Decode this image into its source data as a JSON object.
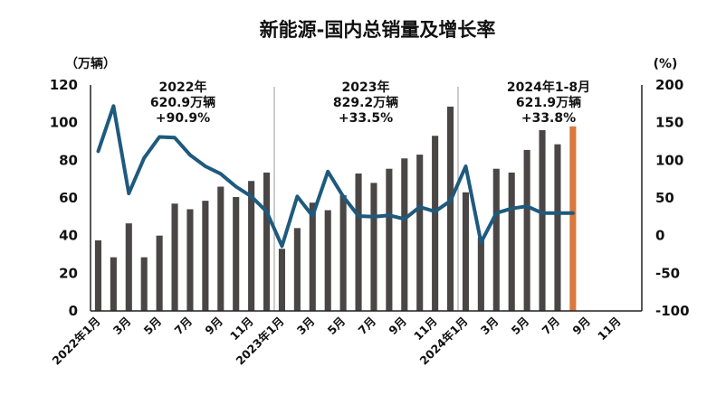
{
  "chart_data": {
    "type": "bar",
    "title": "新能源-国内总销量及增长率",
    "left_axis_unit": "（万辆）",
    "right_axis_unit": "(%)",
    "ylim": [
      0,
      120
    ],
    "y_ticks": [
      "0",
      "20",
      "40",
      "60",
      "80",
      "100",
      "120"
    ],
    "y2lim": [
      -100,
      200
    ],
    "y2_ticks": [
      "-100",
      "-50",
      "0",
      "50",
      "100",
      "150",
      "200"
    ],
    "x_tick_labels": [
      "2022年1月",
      "3月",
      "5月",
      "7月",
      "9月",
      "11月",
      "2023年1月",
      "3月",
      "5月",
      "7月",
      "9月",
      "11月",
      "2024年1月",
      "3月",
      "5月",
      "7月",
      "9月",
      "11月"
    ],
    "annotations": [
      {
        "year": "2022年",
        "total": "620.9万辆",
        "growth": "+90.9%"
      },
      {
        "year": "2023年",
        "total": "829.2万辆",
        "growth": "+33.5%"
      },
      {
        "year": "2024年1-8月",
        "total": "621.9万辆",
        "growth": "+33.8%"
      }
    ],
    "months": 36,
    "series": [
      {
        "kind": "bar",
        "axis": "left",
        "color": "#4a4646",
        "highlight_color": "#d9783a",
        "highlight_index": 31,
        "values": [
          37.5,
          28.5,
          46.5,
          28.5,
          40,
          57,
          54,
          58.5,
          66,
          60.5,
          69,
          73.5,
          33,
          44,
          57.5,
          53.5,
          61.5,
          73,
          68,
          75.5,
          81,
          83,
          93,
          108.5,
          63,
          39,
          75.5,
          73.5,
          85.5,
          96,
          88.5,
          98,
          null,
          null,
          null,
          null
        ]
      },
      {
        "kind": "line",
        "axis": "right",
        "color": "#1e5a7d",
        "values": [
          112,
          172,
          56,
          103,
          131,
          130,
          107,
          92,
          82,
          65,
          52,
          32,
          -14,
          52,
          26,
          85,
          52,
          26,
          25,
          27,
          22,
          38,
          32,
          46,
          92,
          -9,
          30,
          36,
          39,
          30,
          30,
          30,
          null,
          null,
          null,
          null
        ]
      }
    ],
    "colors": {
      "bar": "#4a4646",
      "highlight_bar": "#d9783a",
      "line": "#1e5a7d",
      "divider": "#9a9a9a"
    }
  }
}
